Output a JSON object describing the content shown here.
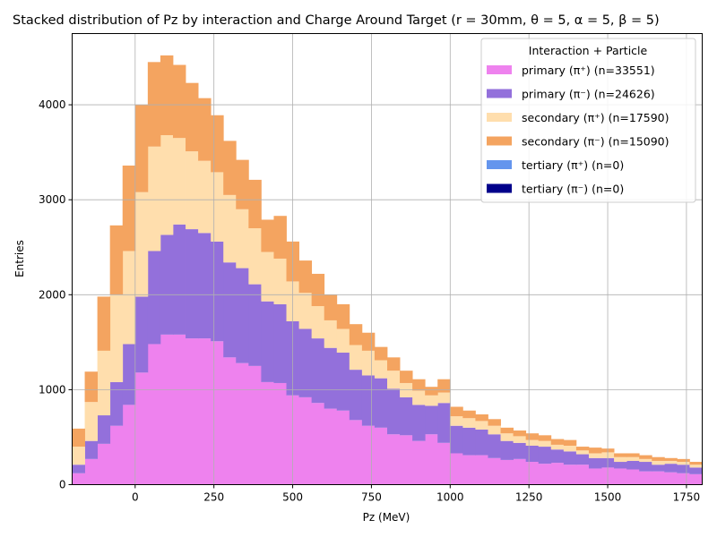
{
  "chart_data": {
    "type": "bar",
    "stacked": true,
    "title": "Stacked distribution of Pz by interaction and Charge Around Target (r = 30mm, θ = 5, α = 5, β = 5)",
    "xlabel": "Pz (MeV)",
    "ylabel": "Entries",
    "xlim": [
      -200,
      1800
    ],
    "ylim": [
      0,
      4750
    ],
    "grid": true,
    "bin_width": 40,
    "x_ticks": [
      0,
      250,
      500,
      750,
      1000,
      1250,
      1500,
      1750
    ],
    "y_ticks": [
      0,
      1000,
      2000,
      3000,
      4000
    ],
    "legend": {
      "title": "Interaction + Particle",
      "placement": "top-right"
    },
    "bin_edges_start": [
      -200,
      -160,
      -120,
      -80,
      -40,
      0,
      40,
      80,
      120,
      160,
      200,
      240,
      280,
      320,
      360,
      400,
      440,
      480,
      520,
      560,
      600,
      640,
      680,
      720,
      760,
      800,
      840,
      880,
      920,
      960,
      1000,
      1040,
      1080,
      1120,
      1160,
      1200,
      1240,
      1280,
      1320,
      1360,
      1400,
      1440,
      1480,
      1520,
      1560,
      1600,
      1640,
      1680,
      1720,
      1760
    ],
    "series": [
      {
        "name": "primary (π⁺) (n=33551)",
        "color": "#ee82ee",
        "values": [
          120,
          270,
          430,
          620,
          840,
          1180,
          1480,
          1580,
          1580,
          1540,
          1540,
          1510,
          1340,
          1280,
          1250,
          1080,
          1070,
          940,
          920,
          860,
          800,
          780,
          680,
          620,
          600,
          530,
          520,
          460,
          530,
          440,
          330,
          310,
          310,
          280,
          260,
          270,
          240,
          220,
          230,
          210,
          210,
          170,
          180,
          170,
          160,
          140,
          140,
          130,
          120,
          110
        ]
      },
      {
        "name": "primary (π⁻) (n=24626)",
        "color": "#9370db",
        "values": [
          90,
          190,
          300,
          460,
          640,
          800,
          980,
          1050,
          1160,
          1150,
          1110,
          1050,
          1000,
          1000,
          860,
          850,
          830,
          780,
          720,
          680,
          640,
          610,
          530,
          530,
          520,
          480,
          400,
          380,
          300,
          420,
          290,
          290,
          270,
          250,
          200,
          170,
          170,
          180,
          140,
          140,
          110,
          110,
          100,
          70,
          90,
          100,
          70,
          90,
          90,
          70
        ]
      },
      {
        "name": "secondary (π⁺) (n=17590)",
        "color": "#ffdead",
        "values": [
          190,
          410,
          680,
          920,
          980,
          1100,
          1100,
          1050,
          910,
          820,
          760,
          730,
          710,
          620,
          590,
          520,
          480,
          420,
          380,
          340,
          290,
          250,
          260,
          260,
          190,
          190,
          150,
          150,
          110,
          110,
          100,
          100,
          90,
          90,
          80,
          70,
          60,
          60,
          50,
          60,
          40,
          50,
          60,
          50,
          40,
          30,
          40,
          30,
          30,
          30
        ]
      },
      {
        "name": "secondary (π⁻) (n=15090)",
        "color": "#f4a460",
        "values": [
          190,
          320,
          570,
          730,
          900,
          920,
          890,
          840,
          770,
          720,
          660,
          600,
          570,
          520,
          510,
          340,
          450,
          420,
          340,
          340,
          270,
          260,
          220,
          190,
          140,
          140,
          130,
          120,
          90,
          140,
          100,
          80,
          70,
          70,
          60,
          60,
          70,
          60,
          60,
          60,
          40,
          60,
          40,
          40,
          40,
          40,
          40,
          30,
          30,
          30
        ]
      },
      {
        "name": "tertiary (π⁺) (n=0)",
        "color": "#6495ed",
        "values": []
      },
      {
        "name": "tertiary (π⁻) (n=0)",
        "color": "#00008b",
        "values": []
      }
    ]
  }
}
